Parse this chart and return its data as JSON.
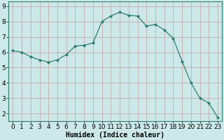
{
  "x": [
    0,
    1,
    2,
    3,
    4,
    5,
    6,
    7,
    8,
    9,
    10,
    11,
    12,
    13,
    14,
    15,
    16,
    17,
    18,
    19,
    20,
    21,
    22,
    23
  ],
  "y": [
    6.1,
    6.0,
    5.7,
    5.5,
    5.35,
    5.5,
    5.85,
    6.4,
    6.45,
    6.6,
    8.0,
    8.35,
    8.6,
    8.4,
    8.35,
    7.7,
    7.8,
    7.45,
    6.9,
    5.4,
    4.0,
    3.0,
    2.7,
    1.75
  ],
  "line_color": "#2e7d6e",
  "marker": "D",
  "marker_size": 2.0,
  "line_width": 0.9,
  "background_color": "#cce8e8",
  "grid_color_v": "#c8a0a0",
  "grid_color_h": "#c8a0a0",
  "xlabel": "Humidex (Indice chaleur)",
  "xlabel_fontsize": 7,
  "tick_fontsize": 6.5,
  "xlim": [
    -0.5,
    23.5
  ],
  "ylim": [
    1.5,
    9.3
  ],
  "yticks": [
    2,
    3,
    4,
    5,
    6,
    7,
    8,
    9
  ],
  "xticks": [
    0,
    1,
    2,
    3,
    4,
    5,
    6,
    7,
    8,
    9,
    10,
    11,
    12,
    13,
    14,
    15,
    16,
    17,
    18,
    19,
    20,
    21,
    22,
    23
  ]
}
